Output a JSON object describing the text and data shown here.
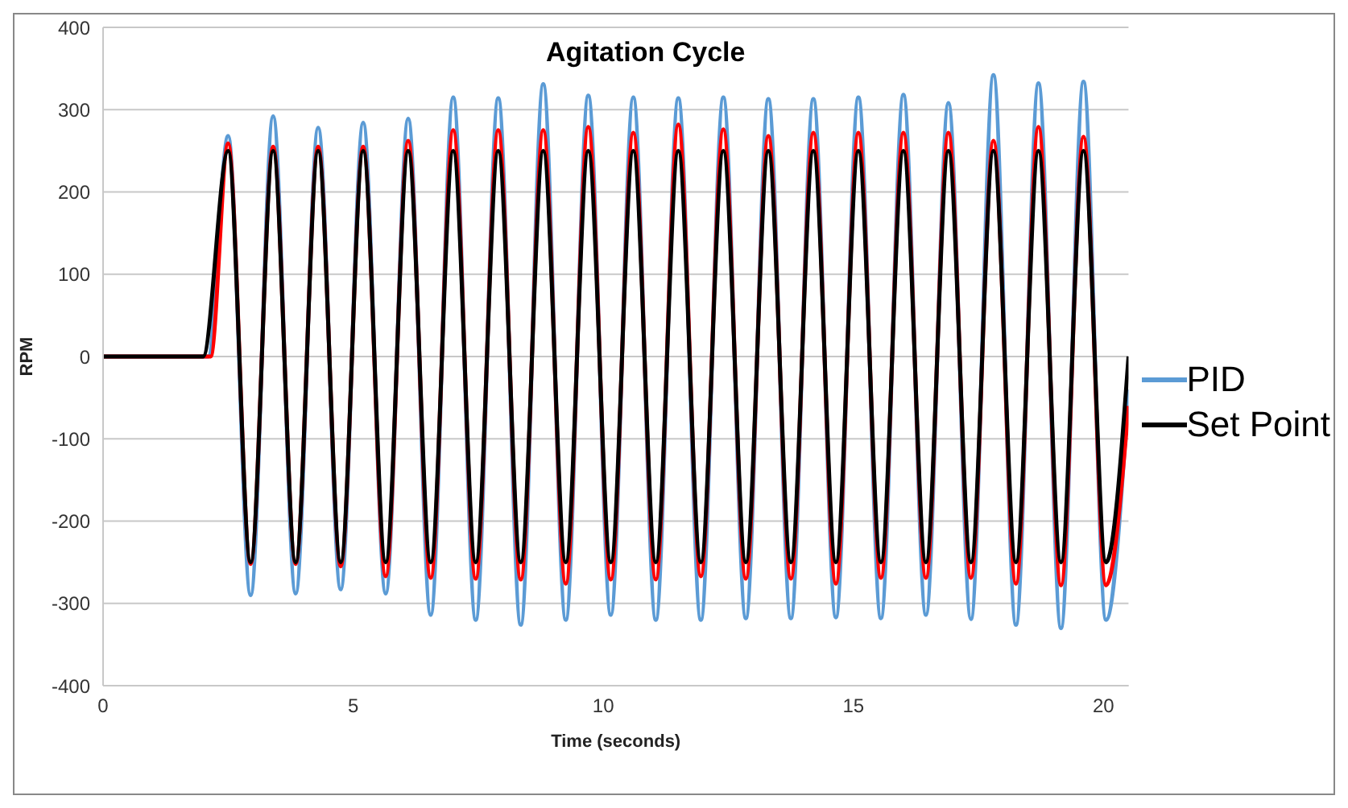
{
  "chart_data": {
    "type": "line",
    "title": "Agitation Cycle",
    "xlabel": "Time (seconds)",
    "ylabel": "RPM",
    "xlim": [
      0,
      20.5
    ],
    "xticks": [
      0,
      5,
      10,
      15,
      20
    ],
    "ylim": [
      -400,
      400
    ],
    "yticks": [
      -400,
      -300,
      -200,
      -100,
      0,
      100,
      200,
      300,
      400
    ],
    "grid": "y",
    "legend": "right",
    "marker": "none",
    "line_style": "solid",
    "series": [
      {
        "name": "PID",
        "color": "#5b9bd5",
        "x": [
          0,
          2.1,
          2.5,
          2.95,
          3.4,
          3.85,
          4.3,
          4.75,
          5.2,
          5.65,
          6.1,
          6.55,
          7.0,
          7.45,
          7.9,
          8.35,
          8.8,
          9.25,
          9.7,
          10.15,
          10.6,
          11.05,
          11.5,
          11.95,
          12.4,
          12.85,
          13.3,
          13.75,
          14.2,
          14.65,
          15.1,
          15.55,
          16.0,
          16.45,
          16.9,
          17.35,
          17.8,
          18.25,
          18.7,
          19.15,
          19.6,
          20.05,
          20.5
        ],
        "values": [
          0,
          0,
          268,
          -290,
          292,
          -288,
          278,
          -283,
          284,
          -288,
          289,
          -314,
          315,
          -320,
          314,
          -326,
          331,
          -320,
          317,
          -314,
          315,
          -320,
          314,
          -320,
          315,
          -318,
          313,
          -318,
          313,
          -317,
          315,
          -318,
          318,
          -314,
          308,
          -319,
          342,
          -326,
          332,
          -330,
          334,
          -320,
          -40
        ]
      },
      {
        "color": "#ff0000",
        "x": [
          0,
          2.15,
          2.5,
          2.95,
          3.4,
          3.85,
          4.3,
          4.75,
          5.2,
          5.65,
          6.1,
          6.55,
          7.0,
          7.45,
          7.9,
          8.35,
          8.8,
          9.25,
          9.7,
          10.15,
          10.6,
          11.05,
          11.5,
          11.95,
          12.4,
          12.85,
          13.3,
          13.75,
          14.2,
          14.65,
          15.1,
          15.55,
          16.0,
          16.45,
          16.9,
          17.35,
          17.8,
          18.25,
          18.7,
          19.15,
          19.6,
          20.05,
          20.5
        ],
        "values": [
          0,
          0,
          259,
          -252,
          255,
          -252,
          255,
          -255,
          255,
          -267,
          262,
          -269,
          275,
          -270,
          275,
          -271,
          275,
          -276,
          279,
          -271,
          272,
          -271,
          282,
          -267,
          276,
          -270,
          268,
          -270,
          272,
          -276,
          272,
          -269,
          272,
          -269,
          272,
          -269,
          262,
          -276,
          279,
          -278,
          267,
          -278,
          -60
        ]
      },
      {
        "name": "Set Point",
        "color": "#000000",
        "x": [
          0,
          2.0,
          2.5,
          2.95,
          3.4,
          3.85,
          4.3,
          4.75,
          5.2,
          5.65,
          6.1,
          6.55,
          7.0,
          7.45,
          7.9,
          8.35,
          8.8,
          9.25,
          9.7,
          10.15,
          10.6,
          11.05,
          11.5,
          11.95,
          12.4,
          12.85,
          13.3,
          13.75,
          14.2,
          14.65,
          15.1,
          15.55,
          16.0,
          16.45,
          16.9,
          17.35,
          17.8,
          18.25,
          18.7,
          19.15,
          19.6,
          20.05,
          20.5
        ],
        "values": [
          0,
          0,
          250,
          -250,
          250,
          -250,
          250,
          -250,
          250,
          -250,
          250,
          -250,
          250,
          -250,
          250,
          -250,
          250,
          -250,
          250,
          -250,
          250,
          -250,
          250,
          -250,
          250,
          -250,
          250,
          -250,
          250,
          -250,
          250,
          -250,
          250,
          -250,
          250,
          -250,
          250,
          -250,
          250,
          -250,
          250,
          -250,
          0
        ]
      }
    ]
  }
}
